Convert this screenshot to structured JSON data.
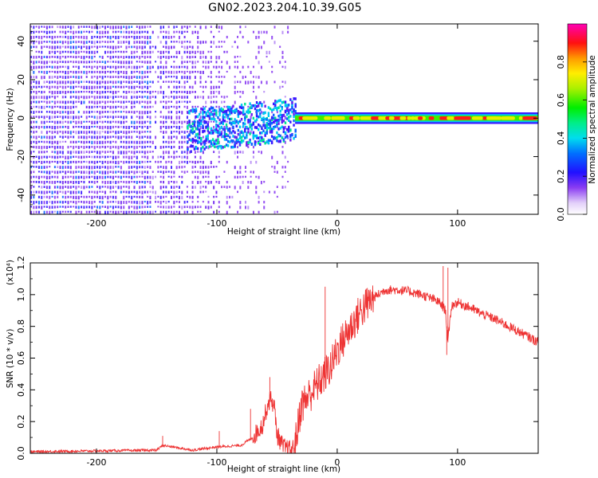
{
  "title": "GN02.2023.204.10.39.G05",
  "colors": {
    "spec_dense": "#6a1ff0",
    "spec_light": "#c7a8f8",
    "snr_line": "#ee3333",
    "axis": "#000000",
    "background": "#ffffff"
  },
  "chart_data": [
    {
      "type": "heatmap",
      "title": "GN02.2023.204.10.39.G05",
      "xlabel": "Height of straight line (km)",
      "ylabel": "Frequency (Hz)",
      "xlim": [
        -255,
        167
      ],
      "ylim": [
        -50,
        49
      ],
      "xticks": [
        -200,
        -100,
        0,
        100
      ],
      "xtick_labels": [
        "-200",
        "-100",
        "0",
        "100"
      ],
      "yticks": [
        -40,
        -20,
        0,
        20,
        40
      ],
      "ytick_labels": [
        "-40",
        "-20",
        "0",
        "20",
        "40"
      ],
      "colorbar": {
        "label": "Normalized spectral amplitude",
        "range": [
          0,
          1
        ],
        "ticks": [
          0.0,
          0.2,
          0.4,
          0.6,
          0.8
        ],
        "tick_labels": [
          "0.0",
          "0.2",
          "0.4",
          "0.6",
          "0.8"
        ],
        "colormap": "rainbow (white-violet-blue-cyan-green-yellow-red-magenta)"
      },
      "features": {
        "noise_region_x": [
          -255,
          -40
        ],
        "transition_x": [
          -125,
          -35
        ],
        "signal_line_x": [
          -35,
          167
        ],
        "signal_line_frequency": 0,
        "signal_line_freq_halfwidth": 3,
        "gap_columns_x": [
          -152,
          -88
        ]
      }
    },
    {
      "type": "line",
      "xlabel": "Height of straight line (km)",
      "ylabel": "SNR (10 * v/v)",
      "y_multiplier": "(x10⁴)",
      "xlim": [
        -255,
        167
      ],
      "ylim": [
        0,
        1.2
      ],
      "xticks": [
        -200,
        -100,
        0,
        100
      ],
      "xtick_labels": [
        "-200",
        "-100",
        "0",
        "100"
      ],
      "yticks": [
        0.0,
        0.2,
        0.4,
        0.6,
        0.8,
        1.0,
        1.2
      ],
      "ytick_labels": [
        "0.0",
        "0.2",
        "0.4",
        "0.6",
        "0.8",
        "1.0",
        "1.2"
      ],
      "series": [
        {
          "x": [
            -255,
            -200,
            -150,
            -145,
            -120,
            -100,
            -80,
            -70,
            -62,
            -58,
            -55,
            -52,
            -50,
            -45,
            -38,
            -35,
            -30,
            -20,
            -10,
            -5,
            0,
            10,
            20,
            30,
            40,
            50,
            60,
            70,
            80,
            85,
            90,
            92,
            95,
            100,
            110,
            120,
            130,
            140,
            150,
            160,
            167
          ],
          "y": [
            0.01,
            0.015,
            0.02,
            0.05,
            0.02,
            0.04,
            0.05,
            0.1,
            0.18,
            0.3,
            0.35,
            0.28,
            0.12,
            0.04,
            0.02,
            0.05,
            0.3,
            0.4,
            0.5,
            0.55,
            0.65,
            0.78,
            0.9,
            0.98,
            1.03,
            1.03,
            1.02,
            1.0,
            0.97,
            0.95,
            0.9,
            0.7,
            0.93,
            0.95,
            0.92,
            0.88,
            0.85,
            0.81,
            0.77,
            0.73,
            0.7
          ],
          "spikes": [
            {
              "x": -145,
              "y": 0.11
            },
            {
              "x": -98,
              "y": 0.14
            },
            {
              "x": -72,
              "y": 0.28
            },
            {
              "x": -56,
              "y": 0.48
            },
            {
              "x": -10,
              "y": 1.05
            },
            {
              "x": 88,
              "y": 1.18
            },
            {
              "x": 92,
              "y": 1.17
            },
            {
              "x": 91,
              "y": 0.62
            }
          ]
        }
      ]
    }
  ]
}
